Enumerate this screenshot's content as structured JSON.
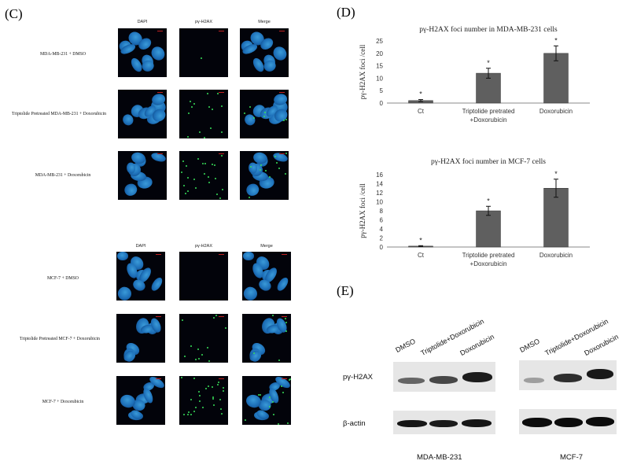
{
  "panel_c": {
    "letter": "(C)",
    "mda": {
      "columns": [
        "DAPI",
        "pγ-H2AX",
        "Merge"
      ],
      "rows": [
        "MDA-MB-231 + DMSO",
        "Triptolide Pretreated MDA-MB-231 + Doxorubicin",
        "MDA-MB-231 + Doxorubicin"
      ]
    },
    "mcf": {
      "columns": [
        "DAPI",
        "pγ-H2AX",
        "Merge"
      ],
      "rows": [
        "MCF-7 + DMSO",
        "Triptolide Pretreated MCF-7 + Doxorubicin",
        "MCF-7 + Doxorubicin"
      ]
    }
  },
  "panel_d": {
    "letter": "(D)",
    "chart_data": [
      {
        "type": "bar",
        "title": "pγ-H2AX foci number in MDA-MB-231 cells",
        "ylabel": "pγ-H2AX foci /cell",
        "categories": [
          "Ct",
          "Triptolide pretrated",
          "Doxorubicin"
        ],
        "categories_line2": [
          "",
          "+Doxorubicin",
          ""
        ],
        "values": [
          1,
          12,
          20
        ],
        "errors": [
          0.4,
          2,
          3
        ],
        "significance": [
          "*",
          "*",
          "*"
        ],
        "ylim": [
          0,
          25
        ],
        "yticks": [
          0,
          5,
          10,
          15,
          20,
          25
        ],
        "color": "#5f5f5f"
      },
      {
        "type": "bar",
        "title": "pγ-H2AX foci number in MCF-7 cells",
        "ylabel": "pγ-H2AX foci /cell",
        "categories": [
          "Ct",
          "Triptolide pretrated",
          "Doxorubicin"
        ],
        "categories_line2": [
          "",
          "+Doxorubicin",
          ""
        ],
        "values": [
          0.2,
          8,
          13
        ],
        "errors": [
          0.1,
          1,
          2
        ],
        "significance": [
          "*",
          "*",
          "*"
        ],
        "ylim": [
          0,
          16
        ],
        "yticks": [
          0,
          2,
          4,
          6,
          8,
          10,
          12,
          14,
          16
        ],
        "color": "#5f5f5f"
      }
    ]
  },
  "panel_e": {
    "letter": "(E)",
    "lanes": [
      "DMSO",
      "Triptolide+Doxorubicin",
      "Doxorubicin"
    ],
    "row_labels": [
      "pγ-H2AX",
      "β-actin"
    ],
    "cell_lines": [
      "MDA-MB-231",
      "MCF-7"
    ]
  }
}
